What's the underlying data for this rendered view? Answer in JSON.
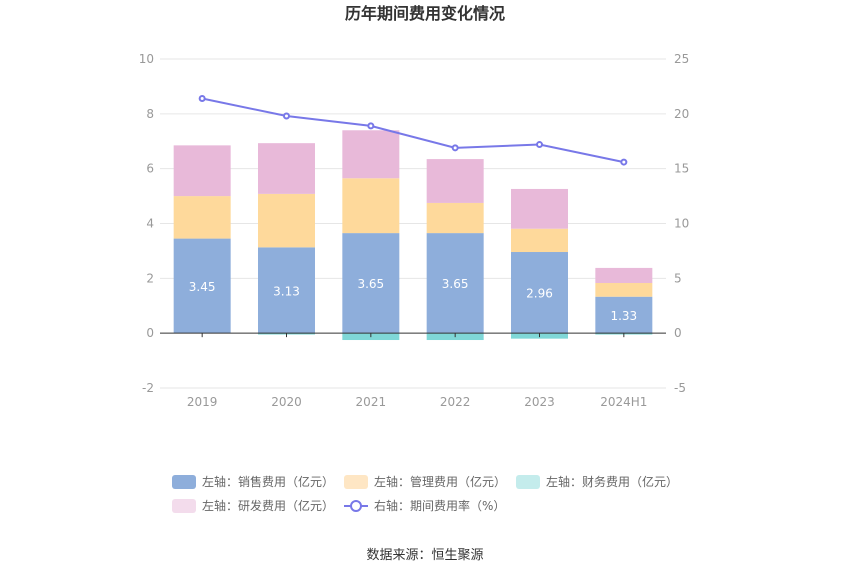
{
  "chart_data": {
    "type": "bar",
    "title": "历年期间费用变化情况",
    "categories": [
      "2019",
      "2020",
      "2021",
      "2022",
      "2023",
      "2024H1"
    ],
    "left_axis": {
      "ylim": [
        -2,
        10
      ],
      "ticks": [
        "-2",
        "0",
        "2",
        "4",
        "6",
        "8",
        "10"
      ]
    },
    "right_axis": {
      "ylim": [
        -5,
        25
      ],
      "ticks": [
        "-5",
        "0",
        "5",
        "10",
        "15",
        "20",
        "25"
      ]
    },
    "stacked": true,
    "series": [
      {
        "name": "左轴：销售费用（亿元）",
        "type": "bar",
        "axis": "left",
        "color": "#8eaedb",
        "values": [
          3.45,
          3.13,
          3.65,
          3.65,
          2.96,
          1.33
        ],
        "labels": [
          "3.45",
          "3.13",
          "3.65",
          "3.65",
          "2.96",
          "1.33"
        ]
      },
      {
        "name": "左轴：管理费用（亿元）",
        "type": "bar",
        "axis": "left",
        "color": "#fed99b",
        "values": [
          1.55,
          1.95,
          2.0,
          1.1,
          0.85,
          0.5
        ]
      },
      {
        "name": "左轴：财务费用（亿元）",
        "type": "bar",
        "axis": "left",
        "color": "#7fd7d7",
        "values": [
          0.0,
          -0.05,
          -0.25,
          -0.25,
          -0.2,
          -0.05
        ]
      },
      {
        "name": "左轴：研发费用（亿元）",
        "type": "bar",
        "axis": "left",
        "color": "#e8b9d9",
        "values": [
          1.85,
          1.85,
          1.75,
          1.6,
          1.45,
          0.55
        ]
      },
      {
        "name": "右轴：期间费用率（%）",
        "type": "line",
        "axis": "right",
        "color": "#7878e8",
        "values": [
          21.4,
          19.8,
          18.9,
          16.9,
          17.2,
          15.6
        ]
      }
    ],
    "legend_position": "bottom",
    "grid": true
  },
  "legend_colors": {
    "sales": "#8eaedb",
    "admin": "#fee6c4",
    "finance": "#c4ecec",
    "rd": "#f3dcec",
    "rate": "#7878e8"
  },
  "source": "数据来源：恒生聚源"
}
